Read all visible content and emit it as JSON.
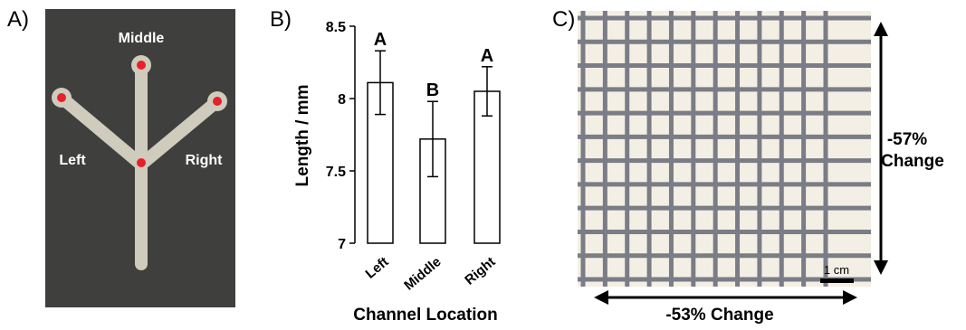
{
  "panels": {
    "a": {
      "label": "A)",
      "labels": {
        "middle": "Middle",
        "left": "Left",
        "right": "Right"
      },
      "colors": {
        "background": "#3f403d",
        "channel": "#cfcbbd",
        "dot": "#e8202a"
      }
    },
    "b": {
      "label": "B)",
      "bar_color": "#ffffff",
      "outline_color": "#000000"
    },
    "c": {
      "label": "C)",
      "vertical_change": [
        "-57%",
        "Change"
      ],
      "horizontal_change": "-53% Change",
      "scale_bar": "1 cm",
      "colors": {
        "paper": "#f4efe4",
        "grid": "#7a7d86"
      }
    }
  },
  "chart_data": {
    "type": "bar",
    "categories": [
      "Left",
      "Middle",
      "Right"
    ],
    "values": [
      8.11,
      7.72,
      8.05
    ],
    "errors": [
      0.22,
      0.26,
      0.17
    ],
    "significance": [
      "A",
      "B",
      "A"
    ],
    "title": "",
    "xlabel": "Channel Location",
    "ylabel": "Length / mm",
    "ylim": [
      7,
      8.5
    ],
    "yticks": [
      "7",
      "7.5",
      "8",
      "8.5"
    ],
    "grid": false
  }
}
